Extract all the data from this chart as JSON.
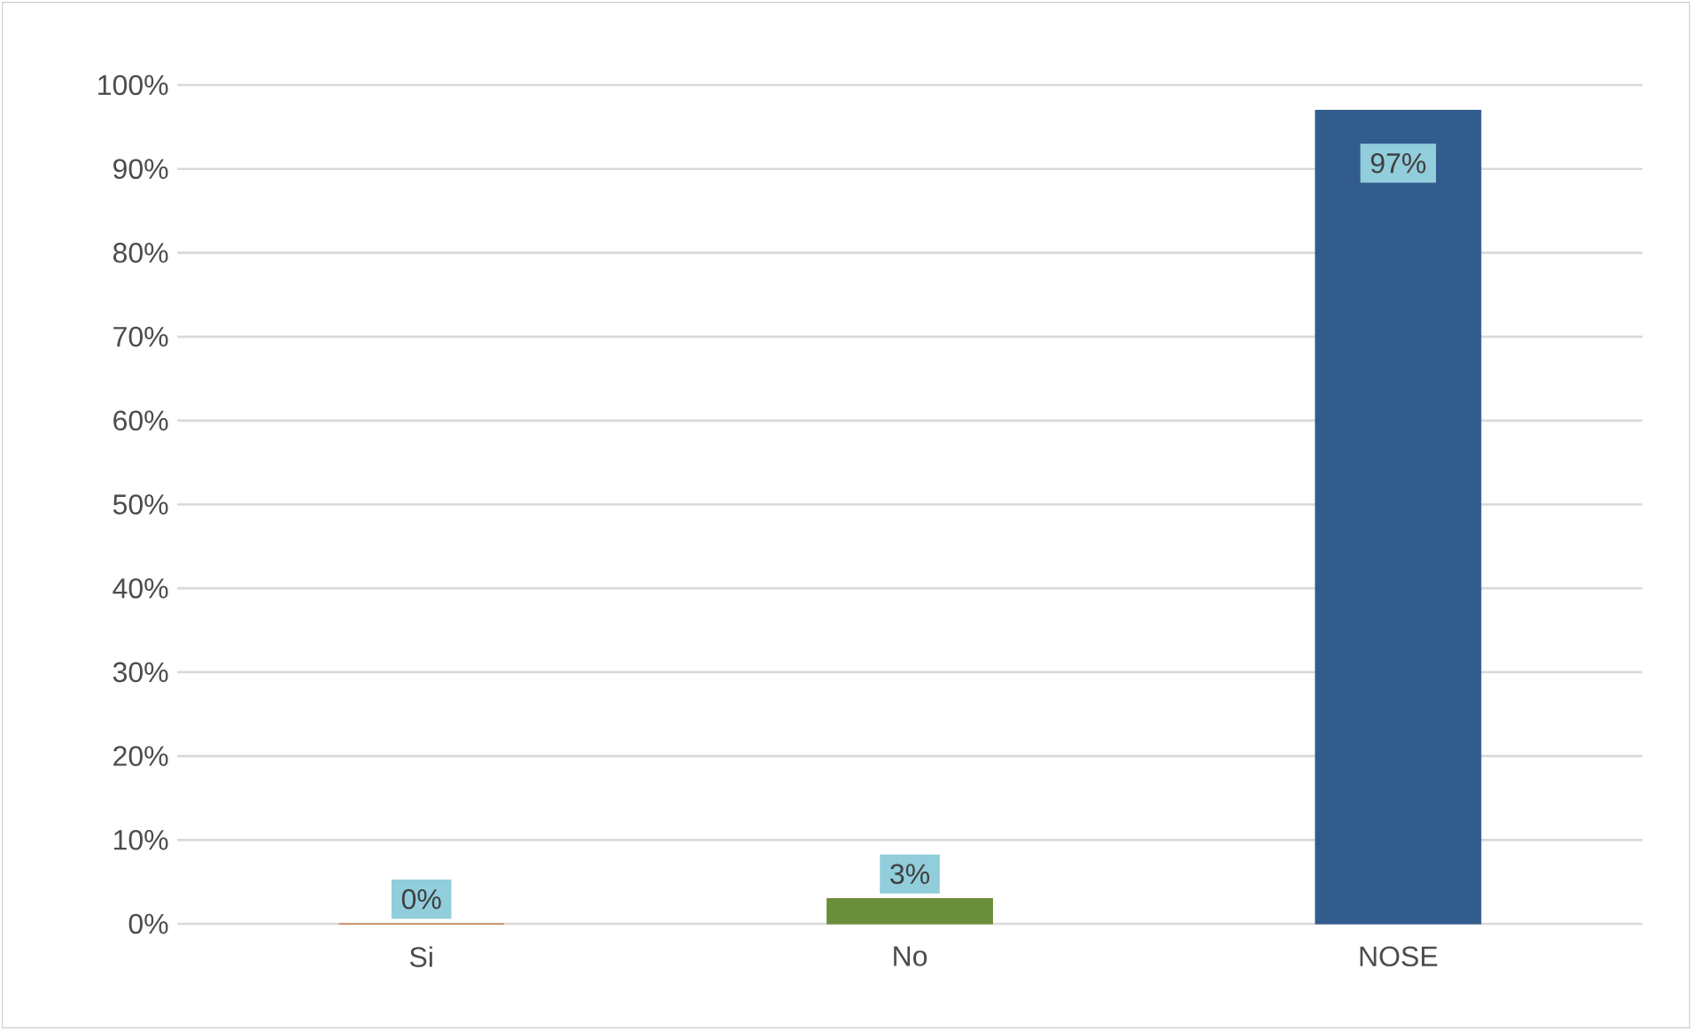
{
  "chart_data": {
    "type": "bar",
    "categories": [
      "Si",
      "No",
      "NOSE"
    ],
    "values": [
      0,
      3,
      97
    ],
    "colors": [
      "#c55a11",
      "#6b8e3a",
      "#335c8e"
    ],
    "value_labels": [
      "0%",
      "3%",
      "97%"
    ],
    "ylim": [
      0,
      100
    ],
    "yticks": [
      {
        "value": 0,
        "label": "0%"
      },
      {
        "value": 10,
        "label": "10%"
      },
      {
        "value": 20,
        "label": "20%"
      },
      {
        "value": 30,
        "label": "30%"
      },
      {
        "value": 40,
        "label": "40%"
      },
      {
        "value": 50,
        "label": "50%"
      },
      {
        "value": 60,
        "label": "60%"
      },
      {
        "value": 70,
        "label": "70%"
      },
      {
        "value": 80,
        "label": "80%"
      },
      {
        "value": 90,
        "label": "90%"
      },
      {
        "value": 100,
        "label": "100%"
      }
    ],
    "grid": "y"
  }
}
